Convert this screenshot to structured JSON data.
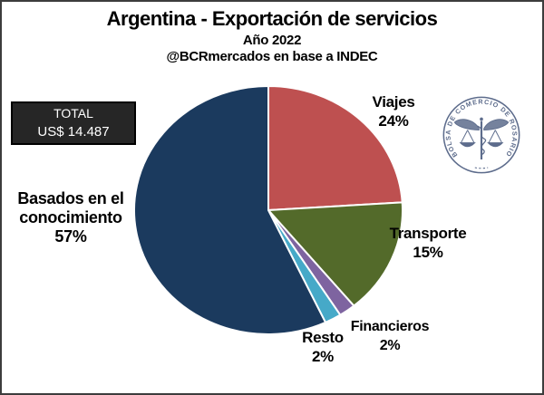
{
  "colors": {
    "background": "#ffffff",
    "frame_border": "#3d3d3d",
    "total_box_bg": "#262626",
    "total_box_border": "#000000",
    "label_text": "#000000",
    "slice_divider": "#ffffff"
  },
  "chart_data": {
    "type": "pie",
    "title": "Argentina - Exportación de servicios",
    "subtitle": "Año 2022",
    "source_credit": "@BCRmercados en base a INDEC",
    "total_label": "TOTAL",
    "total_value": "US$ 14.487",
    "start_angle_deg_from_12": 0,
    "direction": "clockwise",
    "legend": "none - direct outside labels",
    "slices": [
      {
        "label": "Viajes",
        "pct": 24,
        "pct_label": "24%",
        "color": "#be5050"
      },
      {
        "label": "Transporte",
        "pct": 15,
        "pct_label": "15%",
        "color": "#536a2a"
      },
      {
        "label": "Financieros",
        "pct": 2,
        "pct_label": "2%",
        "color": "#7e64a0"
      },
      {
        "label": "Resto",
        "pct": 2,
        "pct_label": "2%",
        "color": "#46a9c8"
      },
      {
        "label": "Basados en el conocimiento",
        "pct": 57,
        "pct_label": "57%",
        "color": "#1b3a5e"
      }
    ]
  },
  "logo": {
    "organization": "BOLSA DE COMERCIO DE ROSARIO",
    "color": "#5d6c8c"
  }
}
